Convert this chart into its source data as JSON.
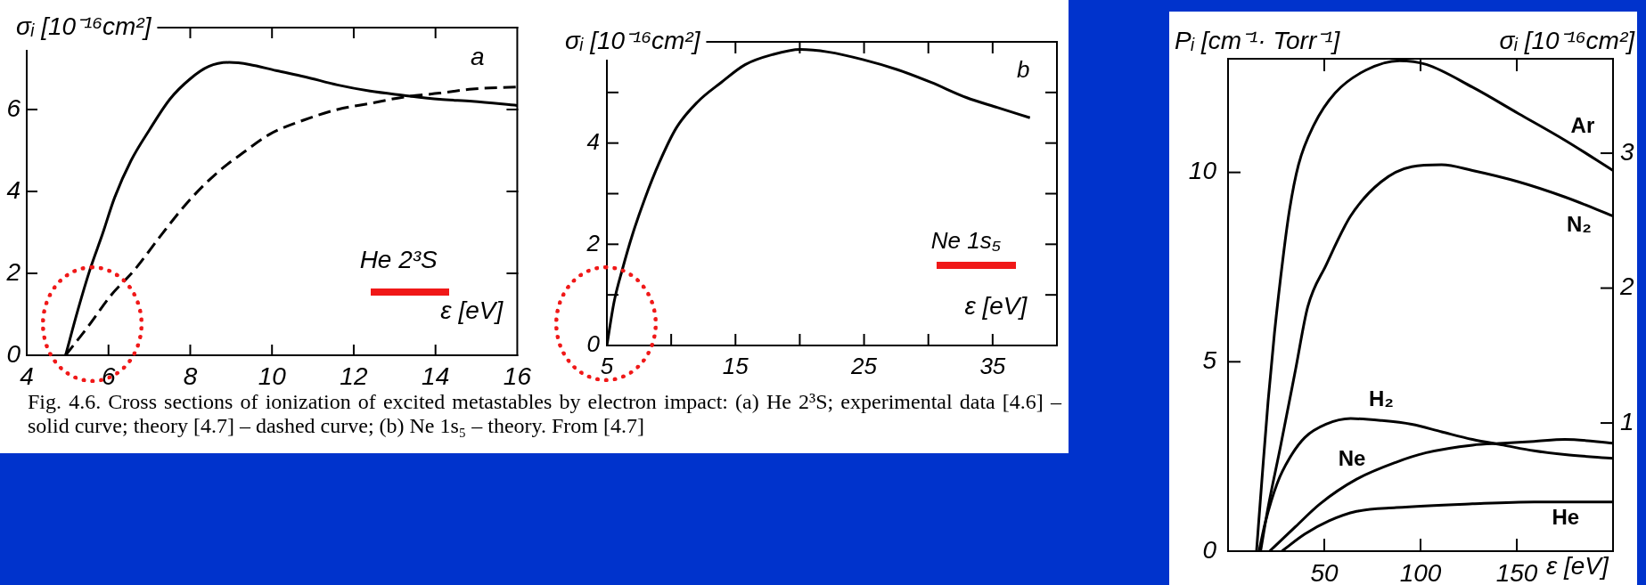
{
  "chart_data": [
    {
      "type": "line",
      "xlabel": "ε [eV]",
      "ylabel": "σᵢ [10⁻¹⁶cm²]",
      "xlim": [
        4,
        16
      ],
      "xticks": [
        4,
        6,
        8,
        10,
        12,
        14,
        16
      ],
      "ylim": [
        0,
        8
      ],
      "yticks": [
        0,
        2,
        4,
        6
      ],
      "marker": "none",
      "annotations": [
        "a",
        "He 2³S",
        "Fig. 4.6. Cross sections of ionization of excited metastables by electron impact: (a) He 2³S; experimental data [4.6] – solid curve; theory [4.7] – dashed curve; (b) Ne 1s₅ – theory. From [4.7]"
      ],
      "series": [
        {
          "color": "#000000",
          "line_style": "solid",
          "x": [
            4.95,
            5.25,
            5.55,
            5.85,
            6.15,
            6.55,
            7.0,
            7.5,
            8.0,
            8.45,
            8.95,
            9.45,
            10.1,
            10.8,
            11.6,
            12.4,
            13.2,
            14.1,
            14.9,
            16
          ],
          "values": [
            0,
            1.1,
            2.1,
            2.95,
            3.85,
            4.75,
            5.5,
            6.25,
            6.75,
            7.05,
            7.15,
            7.1,
            6.95,
            6.8,
            6.6,
            6.45,
            6.35,
            6.25,
            6.2,
            6.1
          ]
        },
        {
          "color": "#000000",
          "line_style": "dashed",
          "x": [
            4.95,
            5.5,
            6.05,
            6.65,
            7.3,
            7.95,
            8.65,
            9.3,
            9.95,
            10.8,
            11.6,
            12.4,
            13.2,
            14.1,
            14.9,
            16
          ],
          "values": [
            0,
            0.7,
            1.45,
            2.1,
            2.95,
            3.75,
            4.45,
            4.95,
            5.4,
            5.75,
            6.0,
            6.15,
            6.3,
            6.4,
            6.5,
            6.55
          ]
        }
      ]
    },
    {
      "type": "line",
      "xlabel": "ε [eV]",
      "ylabel": "σᵢ [10⁻¹⁶cm²]",
      "xlim": [
        5,
        40
      ],
      "xticks": [
        5,
        {
          "value": 10,
          "label": null
        },
        15,
        {
          "value": 20,
          "label": null
        },
        25,
        {
          "value": 30,
          "label": null
        },
        35
      ],
      "ylim": [
        0,
        6
      ],
      "yticks": [
        0,
        {
          "value": 1,
          "label": null
        },
        2,
        {
          "value": 3,
          "label": null
        },
        4,
        {
          "value": 5,
          "label": null
        }
      ],
      "marker": "none",
      "annotations": [
        "b",
        "Ne 1s₅"
      ],
      "series": [
        {
          "color": "#000000",
          "x": [
            5,
            5.55,
            6.2,
            7.0,
            7.95,
            9.05,
            10.4,
            12.0,
            13.9,
            15.75,
            17.9,
            20.05,
            22.2,
            24.9,
            27.6,
            30.2,
            32.95,
            35.4,
            37.9
          ],
          "values": [
            0,
            0.85,
            1.5,
            2.2,
            2.9,
            3.6,
            4.3,
            4.8,
            5.2,
            5.55,
            5.75,
            5.85,
            5.8,
            5.65,
            5.45,
            5.2,
            4.9,
            4.7,
            4.5
          ]
        }
      ]
    },
    {
      "type": "line",
      "xlabel": "ε [eV]",
      "ylabel": "Pᵢ [cm⁻¹· Torr⁻¹]",
      "y2label": "σᵢ [10⁻¹⁶cm²]",
      "xlim": [
        0,
        200
      ],
      "xticks": [
        50,
        100,
        150
      ],
      "ylim": [
        0,
        13
      ],
      "yticks": [
        0,
        5,
        10
      ],
      "y2lim": [
        0.05,
        3.7
      ],
      "y2ticks": [
        1,
        2,
        3
      ],
      "marker": "none",
      "series": [
        {
          "name": "Ar",
          "color": "#000000",
          "x": [
            14.8,
            17.7,
            20.8,
            24.1,
            28.7,
            31.9,
            36.6,
            44.6,
            55.7,
            71.6,
            89,
            103,
            127,
            151,
            175,
            200
          ],
          "values": [
            0,
            1.95,
            3.95,
            5.75,
            7.8,
            9.0,
            10.2,
            11.25,
            12.1,
            12.7,
            12.95,
            12.85,
            12.25,
            11.55,
            10.85,
            10.05
          ]
        },
        {
          "name": "N₂",
          "color": "#000000",
          "x": [
            16.9,
            20.8,
            27.2,
            35.1,
            41.4,
            50.9,
            63.7,
            79.5,
            95.4,
            111,
            127,
            151,
            175,
            200
          ],
          "values": [
            0,
            1.15,
            2.75,
            4.8,
            6.45,
            7.55,
            8.85,
            9.75,
            10.15,
            10.2,
            10.05,
            9.75,
            9.35,
            8.85
          ]
        },
        {
          "name": "H₂",
          "color": "#000000",
          "x": [
            16.1,
            19.3,
            25.6,
            31.9,
            39.9,
            50.9,
            63.7,
            79.5,
            95.4,
            111,
            127,
            143,
            159,
            175,
            200
          ],
          "values": [
            0,
            0.75,
            1.8,
            2.45,
            3.0,
            3.35,
            3.5,
            3.45,
            3.35,
            3.15,
            2.95,
            2.8,
            2.65,
            2.55,
            2.45
          ]
        },
        {
          "name": "Ne",
          "color": "#000000",
          "x": [
            21.6,
            35.1,
            47.8,
            66.8,
            87.4,
            103,
            127,
            143,
            159,
            175,
            200
          ],
          "values": [
            0,
            0.65,
            1.25,
            1.9,
            2.35,
            2.6,
            2.8,
            2.85,
            2.9,
            2.95,
            2.85
          ]
        },
        {
          "name": "He",
          "color": "#000000",
          "x": [
            28,
            39.9,
            52.5,
            66.8,
            87.4,
            127,
            159,
            200
          ],
          "values": [
            0,
            0.45,
            0.8,
            1.05,
            1.15,
            1.25,
            1.3,
            1.3
          ]
        }
      ]
    }
  ]
}
